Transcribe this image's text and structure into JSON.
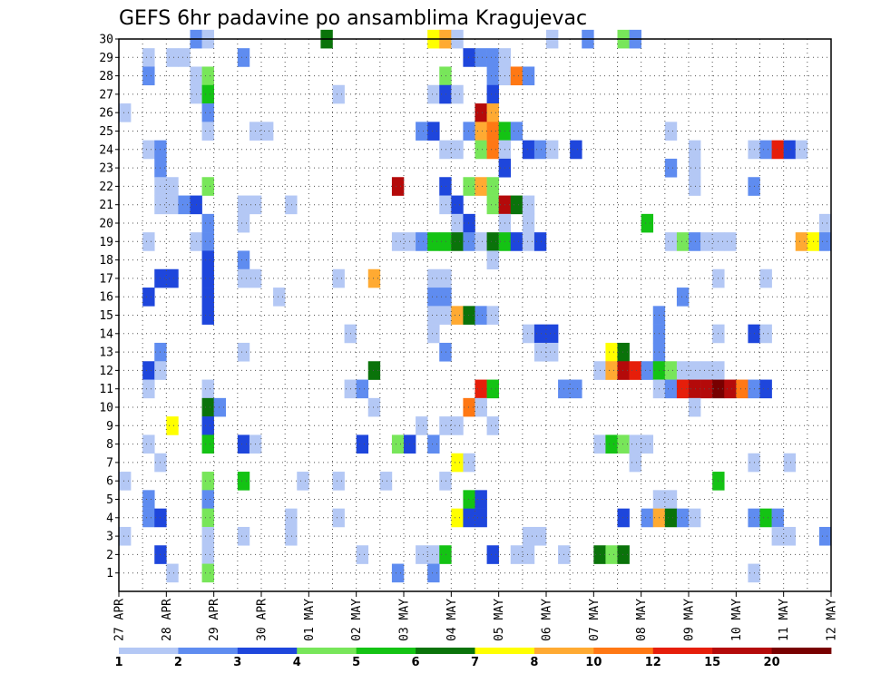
{
  "chart_data": {
    "type": "heatmap",
    "title": "GEFS 6hr padavine po ansamblima Kragujevac",
    "x_range": [
      0,
      30
    ],
    "y_range": [
      0,
      30
    ],
    "x_tick_labels": [
      "27 APR",
      "28 APR",
      "29 APR",
      "30 APR",
      "01 MAY",
      "02 MAY",
      "03 MAY",
      "04 MAY",
      "05 MAY",
      "06 MAY",
      "07 MAY",
      "08 MAY",
      "09 MAY",
      "10 MAY",
      "11 MAY",
      "12 MAY"
    ],
    "y_tick_labels": [
      "1",
      "2",
      "3",
      "4",
      "5",
      "6",
      "7",
      "8",
      "9",
      "10",
      "11",
      "12",
      "13",
      "14",
      "15",
      "16",
      "17",
      "18",
      "19",
      "20",
      "21",
      "22",
      "23",
      "24",
      "25",
      "26",
      "27",
      "28",
      "29",
      "30"
    ],
    "grid": true,
    "colorbar": {
      "labels": [
        "1",
        "2",
        "3",
        "4",
        "5",
        "6",
        "7",
        "8",
        "10",
        "12",
        "15",
        "20"
      ],
      "colors": [
        "#b4c8f5",
        "#5f8cf0",
        "#1e46dc",
        "#78e65a",
        "#14c314",
        "#0a730a",
        "#ffff00",
        "#ffaa32",
        "#ff7814",
        "#e61e0a",
        "#b40a0a",
        "#780000"
      ]
    },
    "cells": [
      [
        3,
        30,
        1
      ],
      [
        3.5,
        30,
        0
      ],
      [
        8.5,
        30,
        5
      ],
      [
        13,
        30,
        6
      ],
      [
        13.5,
        30,
        7
      ],
      [
        14,
        30,
        0
      ],
      [
        18,
        30,
        0
      ],
      [
        19.5,
        30,
        1
      ],
      [
        21,
        30,
        3
      ],
      [
        21.5,
        30,
        1
      ],
      [
        1,
        29,
        0
      ],
      [
        2,
        29,
        0
      ],
      [
        2.5,
        29,
        0
      ],
      [
        5,
        29,
        1
      ],
      [
        14.5,
        29,
        2
      ],
      [
        15,
        29,
        1
      ],
      [
        15.5,
        29,
        1
      ],
      [
        16,
        29,
        0
      ],
      [
        1,
        28,
        1
      ],
      [
        3,
        28,
        0
      ],
      [
        3.5,
        28,
        3
      ],
      [
        13.5,
        28,
        3
      ],
      [
        15.5,
        28,
        1
      ],
      [
        16,
        28,
        0
      ],
      [
        16.5,
        28,
        8
      ],
      [
        17,
        28,
        1
      ],
      [
        3,
        27,
        0
      ],
      [
        3.5,
        27,
        4
      ],
      [
        9,
        27,
        0
      ],
      [
        13,
        27,
        0
      ],
      [
        13.5,
        27,
        2
      ],
      [
        14,
        27,
        0
      ],
      [
        15.5,
        27,
        2
      ],
      [
        0,
        26,
        0
      ],
      [
        3.5,
        26,
        1
      ],
      [
        15,
        26,
        10
      ],
      [
        15.5,
        26,
        7
      ],
      [
        3.5,
        25,
        0
      ],
      [
        5.5,
        25,
        0
      ],
      [
        6,
        25,
        0
      ],
      [
        12.5,
        25,
        1
      ],
      [
        13,
        25,
        2
      ],
      [
        14.5,
        25,
        1
      ],
      [
        15,
        25,
        7
      ],
      [
        15.5,
        25,
        8
      ],
      [
        16,
        25,
        4
      ],
      [
        16.5,
        25,
        1
      ],
      [
        23,
        25,
        0
      ],
      [
        1,
        24,
        0
      ],
      [
        1.5,
        24,
        1
      ],
      [
        13.5,
        24,
        0
      ],
      [
        14,
        24,
        0
      ],
      [
        15,
        24,
        3
      ],
      [
        15.5,
        24,
        8
      ],
      [
        16,
        24,
        0
      ],
      [
        17,
        24,
        2
      ],
      [
        17.5,
        24,
        1
      ],
      [
        18,
        24,
        0
      ],
      [
        19,
        24,
        2
      ],
      [
        24,
        24,
        0
      ],
      [
        26.5,
        24,
        0
      ],
      [
        27,
        24,
        1
      ],
      [
        27.5,
        24,
        9
      ],
      [
        28,
        24,
        2
      ],
      [
        28.5,
        24,
        0
      ],
      [
        1.5,
        23,
        1
      ],
      [
        16,
        23,
        2
      ],
      [
        23,
        23,
        1
      ],
      [
        24,
        23,
        0
      ],
      [
        1.5,
        22,
        0
      ],
      [
        2,
        22,
        0
      ],
      [
        3.5,
        22,
        3
      ],
      [
        11.5,
        22,
        10
      ],
      [
        13.5,
        22,
        2
      ],
      [
        14.5,
        22,
        3
      ],
      [
        15,
        22,
        7
      ],
      [
        15.5,
        22,
        3
      ],
      [
        24,
        22,
        0
      ],
      [
        26.5,
        22,
        1
      ],
      [
        1.5,
        21,
        0
      ],
      [
        2,
        21,
        0
      ],
      [
        2.5,
        21,
        1
      ],
      [
        3,
        21,
        2
      ],
      [
        5,
        21,
        0
      ],
      [
        5.5,
        21,
        0
      ],
      [
        7,
        21,
        0
      ],
      [
        13.5,
        21,
        0
      ],
      [
        14,
        21,
        2
      ],
      [
        15.5,
        21,
        3
      ],
      [
        16,
        21,
        10
      ],
      [
        16.5,
        21,
        5
      ],
      [
        17,
        21,
        0
      ],
      [
        3.5,
        20,
        1
      ],
      [
        5,
        20,
        0
      ],
      [
        14,
        20,
        0
      ],
      [
        14.5,
        20,
        2
      ],
      [
        16,
        20,
        0
      ],
      [
        17,
        20,
        0
      ],
      [
        22,
        20,
        4
      ],
      [
        29.5,
        20,
        0
      ],
      [
        1,
        19,
        0
      ],
      [
        3,
        19,
        0
      ],
      [
        3.5,
        19,
        1
      ],
      [
        11.5,
        19,
        0
      ],
      [
        12,
        19,
        0
      ],
      [
        12.5,
        19,
        1
      ],
      [
        13,
        19,
        4
      ],
      [
        13.5,
        19,
        4
      ],
      [
        14,
        19,
        5
      ],
      [
        14.5,
        19,
        1
      ],
      [
        15,
        19,
        0
      ],
      [
        15.5,
        19,
        5
      ],
      [
        16,
        19,
        4
      ],
      [
        16.5,
        19,
        2
      ],
      [
        17,
        19,
        0
      ],
      [
        17.5,
        19,
        2
      ],
      [
        23,
        19,
        0
      ],
      [
        23.5,
        19,
        3
      ],
      [
        24,
        19,
        1
      ],
      [
        24.5,
        19,
        0
      ],
      [
        25,
        19,
        0
      ],
      [
        25.5,
        19,
        0
      ],
      [
        28.5,
        19,
        7
      ],
      [
        29,
        19,
        6
      ],
      [
        29.5,
        19,
        1
      ],
      [
        3.5,
        18,
        2
      ],
      [
        5,
        18,
        1
      ],
      [
        15.5,
        18,
        0
      ],
      [
        1.5,
        17,
        2
      ],
      [
        2,
        17,
        2
      ],
      [
        3.5,
        17,
        2
      ],
      [
        5,
        17,
        0
      ],
      [
        5.5,
        17,
        0
      ],
      [
        9,
        17,
        0
      ],
      [
        10.5,
        17,
        7
      ],
      [
        13,
        17,
        0
      ],
      [
        13.5,
        17,
        0
      ],
      [
        25,
        17,
        0
      ],
      [
        27,
        17,
        0
      ],
      [
        1,
        16,
        2
      ],
      [
        3.5,
        16,
        2
      ],
      [
        6.5,
        16,
        0
      ],
      [
        13,
        16,
        1
      ],
      [
        13.5,
        16,
        1
      ],
      [
        23.5,
        16,
        1
      ],
      [
        3.5,
        15,
        2
      ],
      [
        13,
        15,
        0
      ],
      [
        13.5,
        15,
        0
      ],
      [
        14,
        15,
        7
      ],
      [
        14.5,
        15,
        5
      ],
      [
        15,
        15,
        1
      ],
      [
        15.5,
        15,
        0
      ],
      [
        22.5,
        15,
        1
      ],
      [
        9.5,
        14,
        0
      ],
      [
        13,
        14,
        0
      ],
      [
        17,
        14,
        0
      ],
      [
        17.5,
        14,
        2
      ],
      [
        18,
        14,
        2
      ],
      [
        22.5,
        14,
        1
      ],
      [
        25,
        14,
        0
      ],
      [
        26.5,
        14,
        2
      ],
      [
        27,
        14,
        0
      ],
      [
        1.5,
        13,
        1
      ],
      [
        5,
        13,
        0
      ],
      [
        13.5,
        13,
        1
      ],
      [
        17.5,
        13,
        0
      ],
      [
        18,
        13,
        0
      ],
      [
        22.5,
        13,
        1
      ],
      [
        20.5,
        13,
        6
      ],
      [
        21,
        13,
        5
      ],
      [
        1,
        12,
        2
      ],
      [
        1.5,
        12,
        0
      ],
      [
        10.5,
        12,
        5
      ],
      [
        20,
        12,
        0
      ],
      [
        20.5,
        12,
        7
      ],
      [
        21,
        12,
        10
      ],
      [
        21.5,
        12,
        9
      ],
      [
        22,
        12,
        1
      ],
      [
        22.5,
        12,
        4
      ],
      [
        23,
        12,
        3
      ],
      [
        23.5,
        12,
        0
      ],
      [
        24,
        12,
        0
      ],
      [
        24.5,
        12,
        0
      ],
      [
        25,
        12,
        0
      ],
      [
        1,
        11,
        0
      ],
      [
        3.5,
        11,
        0
      ],
      [
        9.5,
        11,
        0
      ],
      [
        10,
        11,
        1
      ],
      [
        15,
        11,
        9
      ],
      [
        15.5,
        11,
        4
      ],
      [
        18.5,
        11,
        1
      ],
      [
        19,
        11,
        1
      ],
      [
        22.5,
        11,
        0
      ],
      [
        23,
        11,
        1
      ],
      [
        23.5,
        11,
        9
      ],
      [
        24,
        11,
        10
      ],
      [
        24.5,
        11,
        10
      ],
      [
        25,
        11,
        11
      ],
      [
        25.5,
        11,
        10
      ],
      [
        26,
        11,
        8
      ],
      [
        26.5,
        11,
        1
      ],
      [
        27,
        11,
        2
      ],
      [
        3.5,
        10,
        5
      ],
      [
        4,
        10,
        1
      ],
      [
        10.5,
        10,
        0
      ],
      [
        14.5,
        10,
        8
      ],
      [
        15,
        10,
        0
      ],
      [
        24,
        10,
        0
      ],
      [
        2,
        9,
        6
      ],
      [
        3.5,
        9,
        2
      ],
      [
        12.5,
        9,
        0
      ],
      [
        13.5,
        9,
        0
      ],
      [
        14,
        9,
        0
      ],
      [
        15.5,
        9,
        0
      ],
      [
        1,
        8,
        0
      ],
      [
        3.5,
        8,
        4
      ],
      [
        5,
        8,
        2
      ],
      [
        5.5,
        8,
        0
      ],
      [
        10,
        8,
        2
      ],
      [
        11.5,
        8,
        3
      ],
      [
        12,
        8,
        2
      ],
      [
        13,
        8,
        1
      ],
      [
        20,
        8,
        0
      ],
      [
        20.5,
        8,
        4
      ],
      [
        21,
        8,
        3
      ],
      [
        21.5,
        8,
        0
      ],
      [
        22,
        8,
        0
      ],
      [
        1.5,
        7,
        0
      ],
      [
        14,
        7,
        6
      ],
      [
        14.5,
        7,
        0
      ],
      [
        21.5,
        7,
        0
      ],
      [
        26.5,
        7,
        0
      ],
      [
        28,
        7,
        0
      ],
      [
        0,
        6,
        0
      ],
      [
        3.5,
        6,
        3
      ],
      [
        5,
        6,
        4
      ],
      [
        7.5,
        6,
        0
      ],
      [
        9,
        6,
        0
      ],
      [
        11,
        6,
        0
      ],
      [
        13.5,
        6,
        0
      ],
      [
        25,
        6,
        4
      ],
      [
        1,
        5,
        1
      ],
      [
        3.5,
        5,
        1
      ],
      [
        14.5,
        5,
        4
      ],
      [
        15,
        5,
        2
      ],
      [
        22.5,
        5,
        0
      ],
      [
        23,
        5,
        0
      ],
      [
        1,
        4,
        1
      ],
      [
        1.5,
        4,
        2
      ],
      [
        3.5,
        4,
        3
      ],
      [
        7,
        4,
        0
      ],
      [
        9,
        4,
        0
      ],
      [
        14,
        4,
        6
      ],
      [
        14.5,
        4,
        2
      ],
      [
        15,
        4,
        2
      ],
      [
        21,
        4,
        2
      ],
      [
        22,
        4,
        1
      ],
      [
        22.5,
        4,
        7
      ],
      [
        23,
        4,
        5
      ],
      [
        23.5,
        4,
        1
      ],
      [
        24,
        4,
        0
      ],
      [
        26.5,
        4,
        1
      ],
      [
        27,
        4,
        4
      ],
      [
        27.5,
        4,
        1
      ],
      [
        0,
        3,
        0
      ],
      [
        3.5,
        3,
        0
      ],
      [
        5,
        3,
        0
      ],
      [
        7,
        3,
        0
      ],
      [
        17,
        3,
        0
      ],
      [
        17.5,
        3,
        0
      ],
      [
        27.5,
        3,
        0
      ],
      [
        28,
        3,
        0
      ],
      [
        29.5,
        3,
        1
      ],
      [
        1.5,
        2,
        2
      ],
      [
        3.5,
        2,
        0
      ],
      [
        10,
        2,
        0
      ],
      [
        12.5,
        2,
        0
      ],
      [
        13,
        2,
        0
      ],
      [
        13.5,
        2,
        4
      ],
      [
        15.5,
        2,
        2
      ],
      [
        16.5,
        2,
        0
      ],
      [
        17,
        2,
        0
      ],
      [
        18.5,
        2,
        0
      ],
      [
        20,
        2,
        5
      ],
      [
        20.5,
        2,
        3
      ],
      [
        21,
        2,
        5
      ],
      [
        2,
        1,
        0
      ],
      [
        3.5,
        1,
        3
      ],
      [
        11.5,
        1,
        1
      ],
      [
        13,
        1,
        1
      ],
      [
        26.5,
        1,
        0
      ]
    ]
  }
}
